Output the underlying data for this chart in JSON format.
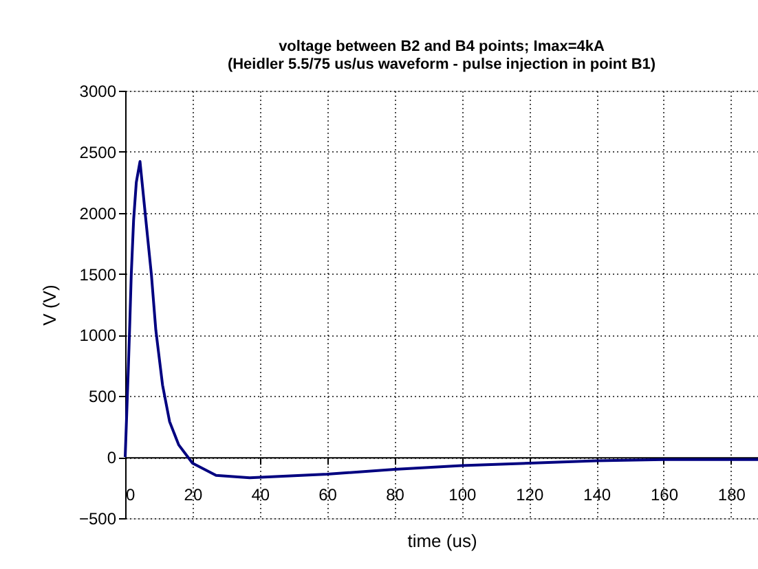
{
  "chart_data": {
    "type": "line",
    "title": [
      "voltage between B2 and B4 points; Imax=4kA",
      "(Heidler 5.5/75 us/us waveform - pulse injection in point B1)"
    ],
    "xlabel": "time (us)",
    "ylabel": "V (V)",
    "x": [
      0,
      0.95,
      1.35,
      1.8,
      2.5,
      3.3,
      4.4,
      6.4,
      7.8,
      9.1,
      11.1,
      13.2,
      15.9,
      20,
      27,
      37,
      60,
      80,
      100,
      120,
      140,
      160,
      188
    ],
    "series": [
      {
        "color": "#000080",
        "values": [
          0,
          740,
          1080,
          1490,
          1940,
          2250,
          2420,
          1870,
          1490,
          1040,
          590,
          290,
          100,
          -50,
          -150,
          -170,
          -140,
          -100,
          -70,
          -50,
          -30,
          -20,
          -20
        ]
      }
    ],
    "xlim": [
      0,
      188
    ],
    "xticks": [
      0,
      20,
      40,
      60,
      80,
      100,
      120,
      140,
      160,
      180
    ],
    "ylim": [
      -500,
      3000
    ],
    "yticks": [
      -500,
      0,
      500,
      1000,
      1500,
      2000,
      2500,
      3000
    ],
    "grid": true,
    "line_style": "solid",
    "marker": "none"
  }
}
